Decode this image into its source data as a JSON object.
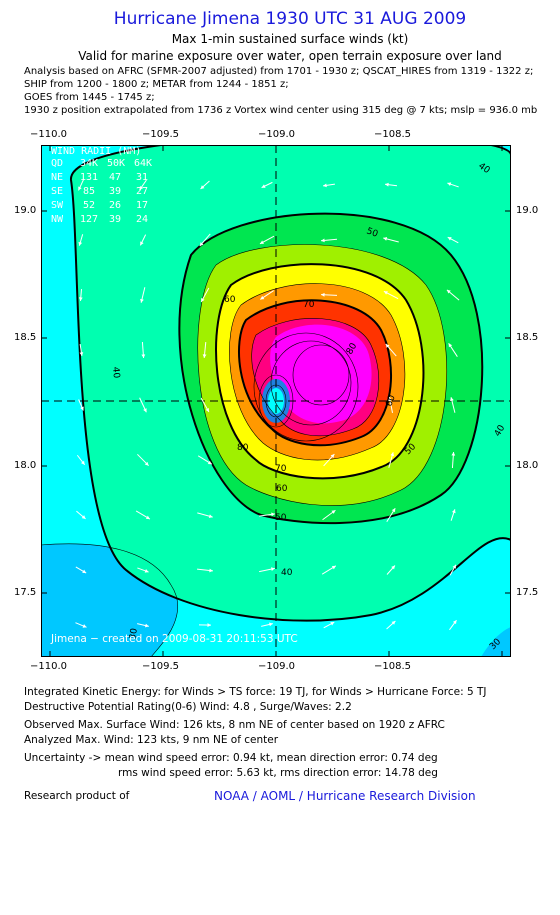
{
  "header": {
    "title": "Hurricane Jimena 1930 UTC 31 AUG 2009",
    "subtitle": "Max 1-min sustained surface winds (kt)",
    "subtitle2": "Valid for marine exposure over water, open terrain exposure over land",
    "analysis_lines": [
      "Analysis based on  AFRC (SFMR-2007 adjusted) from 1701 - 1930 z;  QSCAT_HIRES from 1319 - 1322 z;",
      "SHIP from 1200 - 1800 z;  METAR from 1244 - 1851 z;",
      "GOES from 1445 - 1745 z;",
      "1930 z position extrapolated from 1736 z Vortex wind center using 315 deg @ 7 kts; mslp = 936.0 mb"
    ]
  },
  "map": {
    "lon_ticks": [
      "−110.0",
      "−109.5",
      "−109.0",
      "−108.5"
    ],
    "lat_ticks": [
      "19.0",
      "18.5",
      "18.0",
      "17.5"
    ],
    "lon_range": [
      -110.05,
      -108.05
    ],
    "lat_range": [
      17.35,
      19.27
    ],
    "center": {
      "lon": -109.0,
      "lat": 18.26
    },
    "contour_labels": [
      "30",
      "30",
      "40",
      "40",
      "40",
      "40",
      "50",
      "50",
      "50",
      "60",
      "60",
      "60",
      "70",
      "70",
      "80",
      "80"
    ],
    "wind_radii": {
      "title": "WIND RADII (NM)",
      "header": [
        "QD",
        "34K",
        "50K",
        "64K"
      ],
      "rows": [
        [
          "NE",
          "131",
          "47",
          "31"
        ],
        [
          "SE",
          "85",
          "39",
          "27"
        ],
        [
          "SW",
          "52",
          "26",
          "17"
        ],
        [
          "NW",
          "127",
          "39",
          "24"
        ]
      ]
    },
    "credit": "Jimena − created on 2009-08-31 20:11:53 UTC",
    "colors": {
      "lt30": "#00c8ff",
      "30": "#00ffff",
      "40": "#00ffb0",
      "50": "#00e650",
      "60": "#a0f000",
      "70": "#ffff00",
      "80": "#ff9900",
      "90": "#ff3300",
      "100": "#ff0080",
      "110": "#ff00ff"
    }
  },
  "footer": {
    "ike": "Integrated Kinetic Energy:  for Winds > TS force: 19 TJ,  for Winds > Hurricane Force: 5 TJ",
    "dpr": "Destructive Potential Rating(0-6)   Wind: 4.8 , Surge/Waves: 2.2",
    "obs": "Observed Max. Surface Wind: 126 kts, 8 nm NE of center based on 1920 z AFRC",
    "analyzed": "Analyzed Max. Wind: 123 kts, 9 nm NE of center",
    "uncert1": "Uncertainty -> mean wind speed error: 0.94 kt,   mean direction error: 0.74 deg",
    "uncert2": "rms wind speed error: 5.63 kt,   rms direction error: 14.78 deg",
    "research_label": "Research product of",
    "research_org": "NOAA / AOML / Hurricane Research Division"
  }
}
